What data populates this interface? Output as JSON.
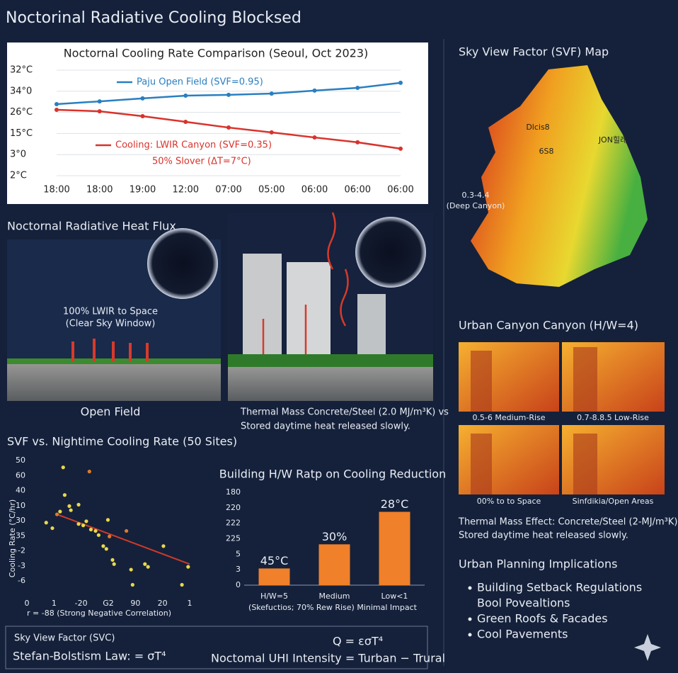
{
  "title": "Noctorinal Radiative Cooling Blocksed",
  "chart_data": [
    {
      "type": "line",
      "title": "Noctornal Cooling Rate Comparison (Seoul, Oct 2023)",
      "categories": [
        "18:00",
        "18:00",
        "19:00",
        "12:00",
        "07:00",
        "05:00",
        "06:00",
        "06:00",
        "06:00"
      ],
      "y_labels": [
        "32°C",
        "34°0",
        "26°C",
        "15°C",
        "3°0",
        "2°C"
      ],
      "ylim": [
        0,
        5
      ],
      "series": [
        {
          "name": "Paju Open Field (SVF=0.95)",
          "color": "#2a7fc0",
          "values": [
            3.39,
            3.52,
            3.66,
            3.79,
            3.83,
            3.89,
            4.03,
            4.16,
            4.4
          ]
        },
        {
          "name": "Cooling: LWIR Canyon (SVF=0.35)",
          "color": "#d8332b",
          "values": [
            3.12,
            3.05,
            2.82,
            2.55,
            2.28,
            2.05,
            1.81,
            1.58,
            1.28
          ]
        }
      ],
      "annotation": "50% Slover (ΔT=7°C)",
      "grid": true
    },
    {
      "type": "scatter",
      "title": "SVF vs. Nightime Cooling Rate (50 Sites)",
      "y_label": "Cooling Rate (°C/hr)",
      "x_labels": [
        "0",
        "1",
        "-20",
        "G2",
        "90",
        "20",
        "1"
      ],
      "y_labels": [
        "50",
        "60",
        "40",
        "10",
        "30",
        "35",
        "-2",
        "-3",
        "-6"
      ],
      "xlim": [
        0,
        1
      ],
      "ylim": [
        0,
        1
      ],
      "series": [
        {
          "color": "#e8d84a",
          "x": [
            0.18,
            0.19,
            0.22,
            0.28,
            0.07,
            0.11,
            0.16,
            0.23,
            0.28,
            0.31,
            0.33,
            0.36,
            0.39,
            0.41,
            0.44,
            0.46,
            0.47,
            0.5,
            0.51,
            0.62,
            0.63,
            0.71,
            0.73,
            0.83,
            0.95,
            0.99
          ],
          "y": [
            0.95,
            0.75,
            0.67,
            0.68,
            0.55,
            0.51,
            0.63,
            0.64,
            0.54,
            0.53,
            0.56,
            0.5,
            0.49,
            0.46,
            0.38,
            0.36,
            0.57,
            0.28,
            0.25,
            0.21,
            0.1,
            0.25,
            0.23,
            0.38,
            0.1,
            0.23
          ]
        },
        {
          "color": "#e07a2a",
          "x": [
            0.35,
            0.14,
            0.48,
            0.59
          ],
          "y": [
            0.92,
            0.61,
            0.45,
            0.49
          ]
        }
      ],
      "trend": {
        "color": "#d03a2a",
        "x": [
          0.14,
          1.0
        ],
        "y": [
          0.61,
          0.25
        ]
      },
      "note": "r = -88 (Strong Negative Correlation)"
    },
    {
      "type": "bar",
      "title": "Building H/W Ratp on Cooling Reduction",
      "categories": [
        "H/W=5",
        "Medium",
        "Low<1"
      ],
      "y_labels": [
        "180",
        "220",
        "222",
        "225",
        "5",
        "3",
        "0"
      ],
      "ylim": [
        0,
        1
      ],
      "values": [
        0.18,
        0.44,
        0.79
      ],
      "bar_texts": [
        "45°C",
        "30%",
        "28°C"
      ],
      "color": "#f0802a",
      "note": "(Skefuctios; 70% Rew Rise) Minimal Impact"
    }
  ],
  "flux": {
    "title": "Noctornal Radiative Heat Flux",
    "sky_text": [
      "100% LWIR to Space",
      "(Clear Sky Window)"
    ],
    "open_field": "Open Field",
    "thermal": [
      "Thermal Mass Concrete/Steel (2.0 MJ/m³K) vs",
      "Stored daytime heat released slowly."
    ]
  },
  "map": {
    "title": "Sky View Factor (SVF) Map",
    "labels": [
      "Dlcis8",
      "6S8",
      "JON힐레"
    ],
    "canyon": [
      "0.3-4.4",
      "(Deep Canyon)"
    ]
  },
  "canyon": {
    "title": "Urban Canyon Canyon (H/W=4)",
    "captions": [
      "0.5-6 Medium-Rise",
      "0.7-8.8.5 Low-Rise",
      "00% to to Space",
      "Sinfdikia/Open Areas"
    ],
    "effect": [
      "Thermal Mass Effect: Concrete/Steel (2-MJ/m³K).",
      "Stored daytime heat released slowly."
    ]
  },
  "planning": {
    "title": "Urban Planning Implications",
    "items": [
      "Building Setback Regulations",
      "Bool Povealtions",
      "Green Roofs & Facades",
      "Cool Pavements"
    ]
  },
  "formula": {
    "svf": "Sky View Factor (SVC)",
    "law": "Stefan-Bolstism Law: = σT⁴",
    "q": "Q = εσT⁴",
    "uhi": "Noctomal UHI Intensity = Turban − Trural"
  }
}
